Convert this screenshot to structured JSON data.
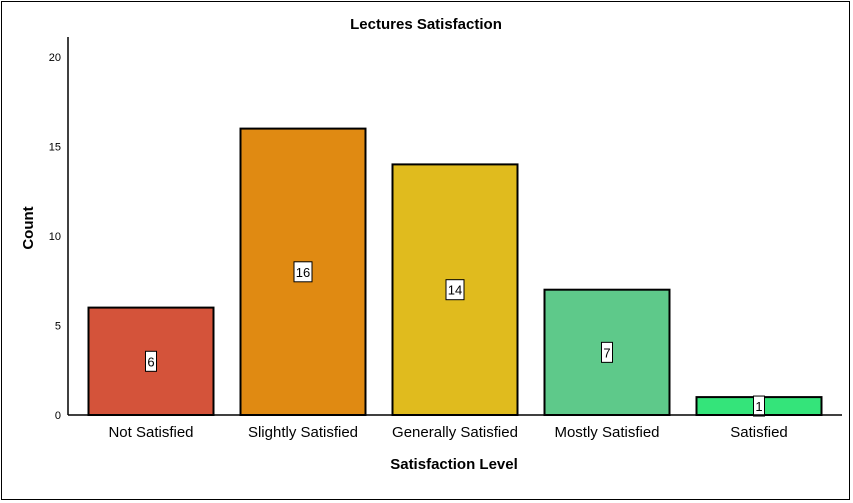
{
  "chart_data": {
    "type": "bar",
    "title": "Lectures Satisfaction",
    "xlabel": "Satisfaction Level",
    "ylabel": "Count",
    "categories": [
      "Not Satisfied",
      "Slightly Satisfied",
      "Generally Satisfied",
      "Mostly Satisfied",
      "Satisfied"
    ],
    "values": [
      6,
      16,
      14,
      7,
      1
    ],
    "data_labels": [
      "6",
      "16",
      "14",
      "7",
      "1"
    ],
    "colors": [
      "#d4533a",
      "#e08a12",
      "#e0bb1e",
      "#5ec98a",
      "#34e47a"
    ],
    "yticks": [
      0,
      5,
      10,
      15,
      20
    ],
    "ylim": [
      0,
      21
    ],
    "grid": false,
    "legend": "none"
  }
}
